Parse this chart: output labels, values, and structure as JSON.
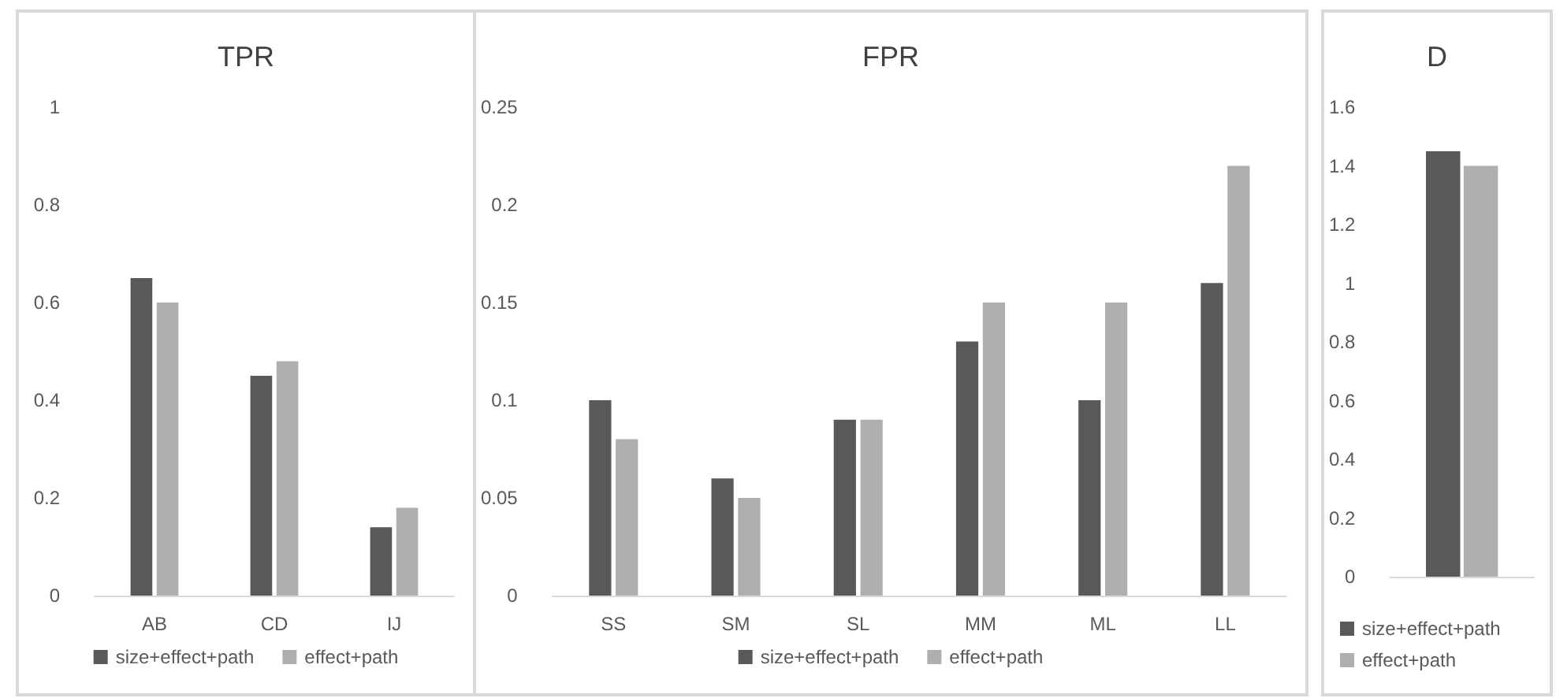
{
  "chart_data": [
    {
      "type": "bar",
      "title": "TPR",
      "categories": [
        "AB",
        "CD",
        "IJ"
      ],
      "series": [
        {
          "name": "size+effect+path",
          "color": "#595959",
          "values": [
            0.65,
            0.45,
            0.14
          ]
        },
        {
          "name": "effect+path",
          "color": "#afafaf",
          "values": [
            0.6,
            0.48,
            0.18
          ]
        }
      ],
      "ylim": [
        0,
        1
      ],
      "yticks": [
        0,
        0.2,
        0.4,
        0.6,
        0.8,
        1
      ],
      "grid": false,
      "legend": "bottom"
    },
    {
      "type": "bar",
      "title": "FPR",
      "categories": [
        "SS",
        "SM",
        "SL",
        "MM",
        "ML",
        "LL"
      ],
      "series": [
        {
          "name": "size+effect+path",
          "color": "#595959",
          "values": [
            0.1,
            0.06,
            0.09,
            0.13,
            0.1,
            0.16
          ]
        },
        {
          "name": "effect+path",
          "color": "#afafaf",
          "values": [
            0.08,
            0.05,
            0.09,
            0.15,
            0.15,
            0.22
          ]
        }
      ],
      "ylim": [
        0,
        0.25
      ],
      "yticks": [
        0,
        0.05,
        0.1,
        0.15,
        0.2,
        0.25
      ],
      "grid": false,
      "legend": "bottom"
    },
    {
      "type": "bar",
      "title": "D",
      "categories": [
        null
      ],
      "series": [
        {
          "name": "size+effect+path",
          "color": "#595959",
          "values": [
            1.45
          ]
        },
        {
          "name": "effect+path",
          "color": "#afafaf",
          "values": [
            1.4
          ]
        }
      ],
      "ylim": [
        0,
        1.6
      ],
      "yticks": [
        0,
        0.2,
        0.4,
        0.6,
        0.8,
        1,
        1.2,
        1.4,
        1.6
      ],
      "grid": false,
      "legend": "bottom"
    }
  ]
}
